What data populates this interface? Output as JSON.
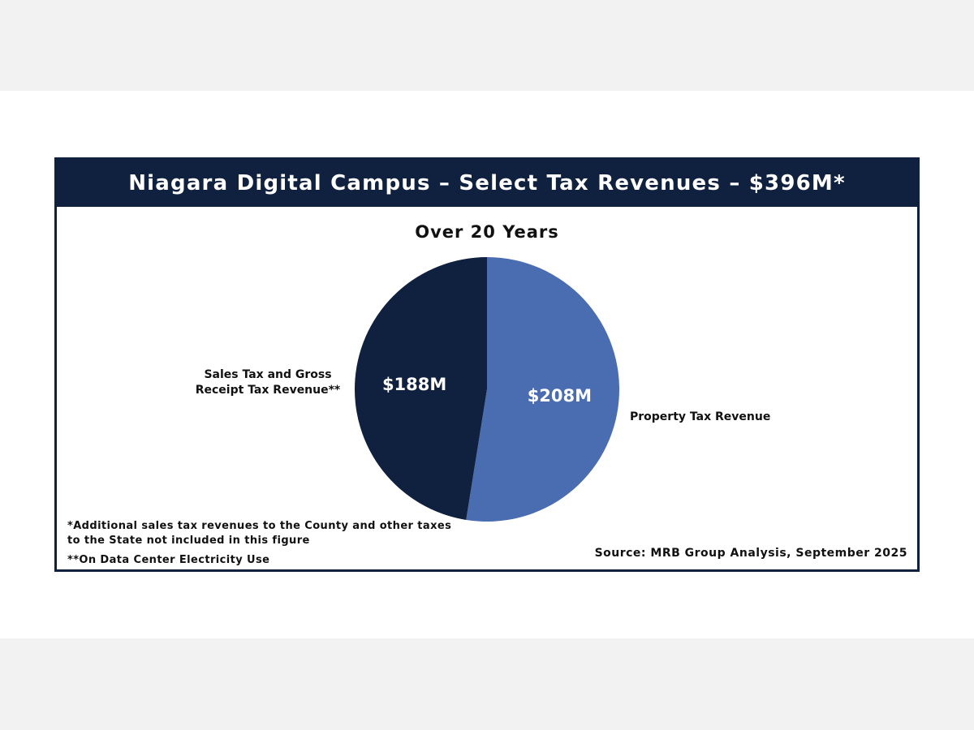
{
  "header": {
    "title": "Niagara Digital Campus – Select Tax Revenues – $396M*"
  },
  "chart_data": {
    "type": "pie",
    "title": "Over 20 Years",
    "slices": [
      {
        "label": "Property Tax Revenue",
        "value": 208,
        "value_label": "$208M",
        "color": "#4a6db2"
      },
      {
        "label": "Sales Tax and Gross Receipt Tax Revenue**",
        "value": 188,
        "value_label": "$188M",
        "color": "#10213f"
      }
    ],
    "total": 396,
    "legend": "none"
  },
  "footnotes": {
    "note1": "*Additional sales tax revenues to the County and other taxes to the State not included in this figure",
    "note2": "**On Data Center Electricity Use",
    "source": "Source: MRB Group Analysis, September 2025"
  },
  "colors": {
    "navy": "#10213f",
    "blue": "#4a6db2",
    "background": "#f2f2f2"
  }
}
